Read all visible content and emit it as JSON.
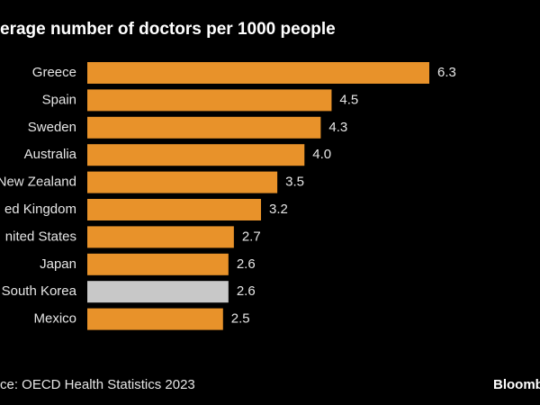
{
  "chart_data": {
    "type": "bar",
    "orientation": "horizontal",
    "title": "erage number of doctors per 1000 people",
    "categories": [
      "Greece",
      "Spain",
      "Sweden",
      "Australia",
      "New Zealand",
      "ed Kingdom",
      "nited States",
      "Japan",
      "South Korea",
      "Mexico"
    ],
    "values": [
      6.3,
      4.5,
      4.3,
      4.0,
      3.5,
      3.2,
      2.7,
      2.6,
      2.6,
      2.5
    ],
    "value_labels": [
      "6.3",
      "4.5",
      "4.3",
      "4.0",
      "3.5",
      "3.2",
      "2.7",
      "2.6",
      "2.6",
      "2.5"
    ],
    "colors": [
      "#e8922a",
      "#e8922a",
      "#e8922a",
      "#e8922a",
      "#e8922a",
      "#e8922a",
      "#e8922a",
      "#e8922a",
      "#c8c8c8",
      "#e8922a"
    ],
    "source": "ce: OECD Health Statistics 2023",
    "brand": "Bloomb"
  }
}
